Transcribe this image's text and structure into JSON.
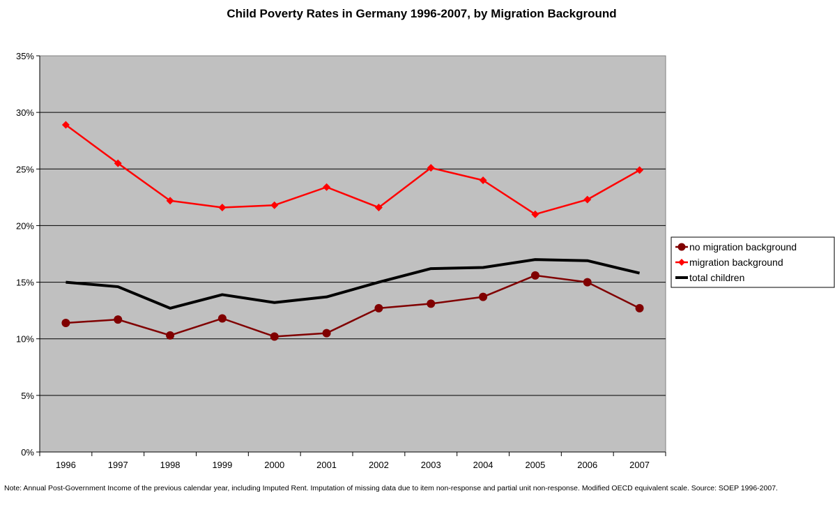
{
  "chart_data": {
    "type": "line",
    "title": "Child Poverty Rates in Germany 1996-2007, by Migration Background",
    "xlabel": "",
    "ylabel": "",
    "x": [
      "1996",
      "1997",
      "1998",
      "1999",
      "2000",
      "2001",
      "2002",
      "2003",
      "2004",
      "2005",
      "2006",
      "2007"
    ],
    "ylim": [
      0,
      35
    ],
    "yticks": [
      0,
      5,
      10,
      15,
      20,
      25,
      30,
      35
    ],
    "ytick_labels": [
      "0%",
      "5%",
      "10%",
      "15%",
      "20%",
      "25%",
      "30%",
      "35%"
    ],
    "grid": true,
    "legend": "right",
    "series": [
      {
        "name": "no migration background",
        "color": "#800000",
        "marker": "circle",
        "values": [
          11.4,
          11.7,
          10.3,
          11.8,
          10.2,
          10.5,
          12.7,
          13.1,
          13.7,
          15.6,
          15.0,
          12.7
        ]
      },
      {
        "name": "migration background",
        "color": "#ff0000",
        "marker": "diamond",
        "values": [
          28.9,
          25.5,
          22.2,
          21.6,
          21.8,
          23.4,
          21.6,
          25.1,
          24.0,
          21.0,
          22.3,
          24.9
        ]
      },
      {
        "name": "total children",
        "color": "#000000",
        "marker": "none",
        "values": [
          15.0,
          14.6,
          12.7,
          13.9,
          13.2,
          13.7,
          15.0,
          16.2,
          16.3,
          17.0,
          16.9,
          15.8
        ]
      }
    ],
    "plot_background": "#c0c0c0"
  },
  "note": "Note: Annual Post-Government Income of the previous calendar year, including Imputed Rent. Imputation of missing data due to item non-response and partial unit non-response. Modified OECD equivalent scale. Source: SOEP 1996-2007."
}
